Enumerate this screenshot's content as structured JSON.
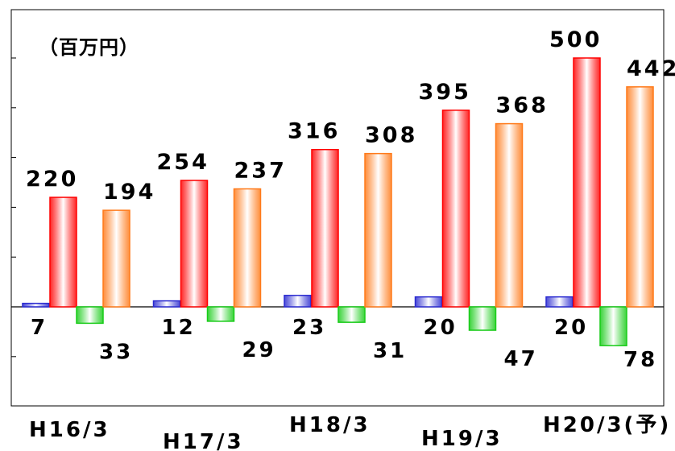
{
  "chart_data": {
    "type": "bar",
    "unit_label": "（百万円）",
    "categories": [
      "H16/3",
      "H17/3",
      "H18/3",
      "H19/3",
      "H20/3(予)"
    ],
    "series": [
      {
        "color": "#2a2ad0",
        "values": [
          7,
          12,
          23,
          20,
          20
        ]
      },
      {
        "color": "#ff0000",
        "values": [
          220,
          254,
          316,
          395,
          500
        ]
      },
      {
        "color": "#19cc19",
        "values": [
          -33,
          -29,
          -31,
          -47,
          -78
        ]
      },
      {
        "color": "#ff7a1a",
        "values": [
          194,
          237,
          308,
          368,
          442
        ]
      }
    ],
    "value_labels": [
      [
        "7",
        "220",
        "33",
        "194"
      ],
      [
        "12",
        "254",
        "29",
        "237"
      ],
      [
        "23",
        "316",
        "31",
        "308"
      ],
      [
        "20",
        "395",
        "47",
        "368"
      ],
      [
        "20",
        "500",
        "78",
        "442"
      ]
    ],
    "ylim": [
      -200,
      600
    ],
    "grid": false,
    "legend": "none"
  }
}
